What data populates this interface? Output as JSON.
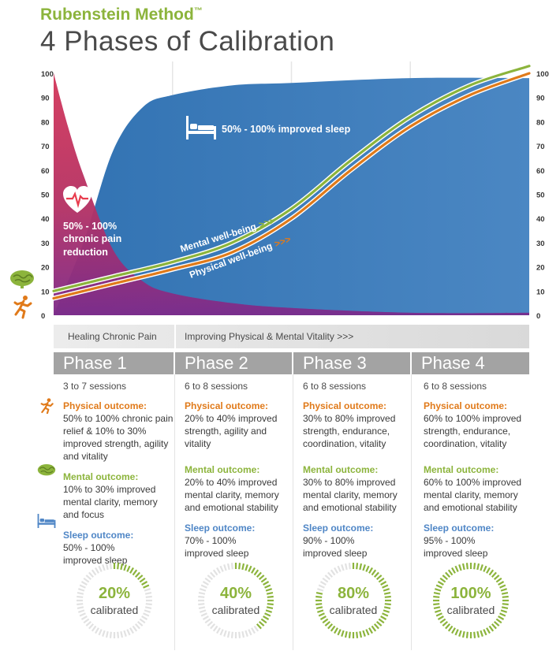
{
  "header": {
    "brand": "Rubenstein Method",
    "brand_mark": "™",
    "title": "4 Phases of Calibration"
  },
  "chart_data": {
    "type": "area",
    "ylim": [
      0,
      100
    ],
    "y_ticks": [
      "0",
      "10",
      "20",
      "30",
      "40",
      "50",
      "60",
      "70",
      "80",
      "90",
      "100"
    ],
    "x_range": [
      0,
      4
    ],
    "series": [
      {
        "name": "Mental well-being",
        "kind": "line",
        "color": "#8cb43c",
        "x": [
          0,
          0.5,
          1,
          1.5,
          2,
          2.5,
          3,
          3.5,
          4
        ],
        "y": [
          10,
          16,
          22,
          30,
          44,
          64,
          82,
          95,
          103
        ]
      },
      {
        "name": "Physical well-being",
        "kind": "line",
        "color": "#e07a1a",
        "x": [
          0,
          0.5,
          1,
          1.5,
          2,
          2.5,
          3,
          3.5,
          4
        ],
        "y": [
          7,
          13,
          19,
          26,
          40,
          60,
          78,
          91,
          100
        ]
      }
    ],
    "areas": [
      {
        "id": "sleep",
        "color": "#3a78b5",
        "x": [
          0,
          0.25,
          0.5,
          0.75,
          1,
          1.5,
          2,
          3,
          4
        ],
        "y": [
          0,
          30,
          68,
          86,
          91,
          95,
          96,
          98,
          98
        ]
      },
      {
        "id": "pain",
        "color": "#e83c4e",
        "x": [
          0,
          0.12,
          0.25,
          0.5,
          0.75,
          1,
          1.5,
          2,
          3,
          4
        ],
        "y": [
          100,
          78,
          58,
          27,
          14,
          9,
          5,
          3,
          1,
          1
        ]
      }
    ],
    "annotations": {
      "pain": "50% - 100% chronic pain reduction",
      "sleep": "50% - 100%  improved sleep",
      "mental": "Mental well-being",
      "physical": "Physical well-being",
      "arrows": ">>>"
    }
  },
  "bands": [
    {
      "label": "Healing Chronic Pain"
    },
    {
      "label": "Improving  Physical & Mental Vitality >>>"
    }
  ],
  "phases": [
    {
      "name": "Phase 1",
      "sessions": "3 to 7 sessions",
      "physical": "50% to 100% chronic pain relief & 10% to 30% improved strength, agility and vitality",
      "mental": "10% to 30% improved mental clarity, memory and focus",
      "sleep": "50% - 100% improved sleep",
      "pct": "20%",
      "fraction": 0.2
    },
    {
      "name": "Phase 2",
      "sessions": "6 to 8 sessions",
      "physical": "20% to 40% improved strength, agility and vitality",
      "mental": "20% to 40% improved mental clarity, memory and emotional stability",
      "sleep": "70% - 100% improved sleep",
      "pct": "40%",
      "fraction": 0.4
    },
    {
      "name": "Phase 3",
      "sessions": "6 to 8 sessions",
      "physical": "30% to 80% improved strength, endurance, coordination, vitality",
      "mental": "30% to 80% improved mental clarity, memory and emotional stability",
      "sleep": "90% - 100% improved sleep",
      "pct": "80%",
      "fraction": 0.8
    },
    {
      "name": "Phase 4",
      "sessions": "6 to 8 sessions",
      "physical": "60% to 100% improved strength, endurance, coordination, vitality",
      "mental": "60% to 100% improved mental clarity, memory and emotional stability",
      "sleep": "95% - 100% improved sleep",
      "pct": "100%",
      "fraction": 1.0
    }
  ],
  "labels": {
    "physical": "Physical outcome:",
    "mental": "Mental outcome:",
    "sleep": "Sleep outcome:",
    "calibrated": "calibrated"
  },
  "colors": {
    "accent_green": "#8cb43c",
    "accent_orange": "#e07a1a",
    "accent_blue": "#4f86c6",
    "phase_gray": "#a3a3a3"
  },
  "icons": [
    "heart-rate-icon",
    "bed-icon",
    "brain-icon",
    "runner-icon"
  ]
}
